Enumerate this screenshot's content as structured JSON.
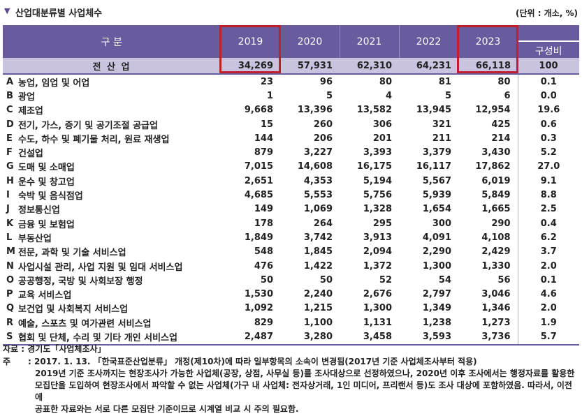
{
  "header": {
    "marker": "▼",
    "title": "산업대분류별 사업체수",
    "unit": "(단위 : 개소, %)"
  },
  "table": {
    "columns": {
      "category": "구 분",
      "years": [
        "2019",
        "2020",
        "2021",
        "2022",
        "2023"
      ],
      "share": "구성비"
    },
    "highlighted_years": [
      "2019",
      "2023"
    ],
    "total": {
      "label": "전 산 업",
      "values": [
        "34,269",
        "57,931",
        "62,310",
        "64,231",
        "66,118"
      ],
      "share": "100"
    },
    "rows": [
      {
        "code": "A",
        "name": "농업, 임업 및 어업",
        "values": [
          "23",
          "96",
          "80",
          "81",
          "80"
        ],
        "share": "0.1"
      },
      {
        "code": "B",
        "name": "광업",
        "values": [
          "1",
          "5",
          "4",
          "5",
          "6"
        ],
        "share": "0.0"
      },
      {
        "code": "C",
        "name": "제조업",
        "values": [
          "9,668",
          "13,396",
          "13,582",
          "13,945",
          "12,954"
        ],
        "share": "19.6"
      },
      {
        "code": "D",
        "name": "전기, 가스, 증기 및 공기조절 공급업",
        "values": [
          "15",
          "260",
          "306",
          "321",
          "425"
        ],
        "share": "0.6"
      },
      {
        "code": "E",
        "name": "수도, 하수 및 폐기물 처리, 원료 재생업",
        "values": [
          "144",
          "206",
          "201",
          "211",
          "214"
        ],
        "share": "0.3"
      },
      {
        "code": "F",
        "name": "건설업",
        "values": [
          "879",
          "3,227",
          "3,393",
          "3,379",
          "3,430"
        ],
        "share": "5.2"
      },
      {
        "code": "G",
        "name": "도매 및 소매업",
        "values": [
          "7,015",
          "14,608",
          "16,175",
          "16,117",
          "17,862"
        ],
        "share": "27.0"
      },
      {
        "code": "H",
        "name": "운수 및 창고업",
        "values": [
          "2,651",
          "4,353",
          "5,194",
          "5,567",
          "6,019"
        ],
        "share": "9.1"
      },
      {
        "code": "I",
        "name": "숙박 및 음식점업",
        "values": [
          "4,685",
          "5,553",
          "5,756",
          "5,939",
          "5,849"
        ],
        "share": "8.8"
      },
      {
        "code": "J",
        "name": "정보통신업",
        "values": [
          "149",
          "1,069",
          "1,328",
          "1,654",
          "1,665"
        ],
        "share": "2.5"
      },
      {
        "code": "K",
        "name": "금융 및 보험업",
        "values": [
          "178",
          "264",
          "295",
          "300",
          "290"
        ],
        "share": "0.4"
      },
      {
        "code": "L",
        "name": "부동산업",
        "values": [
          "1,849",
          "3,742",
          "3,913",
          "4,091",
          "4,108"
        ],
        "share": "6.2"
      },
      {
        "code": "M",
        "name": "전문, 과학 및 기술 서비스업",
        "values": [
          "548",
          "1,845",
          "2,094",
          "2,290",
          "2,429"
        ],
        "share": "3.7"
      },
      {
        "code": "N",
        "name": "사업시설 관리, 사업 지원 및 임대 서비스업",
        "values": [
          "476",
          "1,422",
          "1,372",
          "1,300",
          "1,330"
        ],
        "share": "2.0"
      },
      {
        "code": "O",
        "name": "공공행정, 국방 및 사회보장 행정",
        "values": [
          "50",
          "50",
          "52",
          "54",
          "56"
        ],
        "share": "0.1"
      },
      {
        "code": "P",
        "name": "교육 서비스업",
        "values": [
          "1,530",
          "2,240",
          "2,676",
          "2,797",
          "3,046"
        ],
        "share": "4.6"
      },
      {
        "code": "Q",
        "name": "보건업 및 사회복지 서비스업",
        "values": [
          "1,092",
          "1,215",
          "1,300",
          "1,349",
          "1,346"
        ],
        "share": "2.0"
      },
      {
        "code": "R",
        "name": "예술, 스포츠 및 여가관련 서비스업",
        "values": [
          "829",
          "1,100",
          "1,131",
          "1,238",
          "1,273"
        ],
        "share": "1.9"
      },
      {
        "code": "S",
        "name": "협회 및 단체, 수리 및 기타 개인 서비스업",
        "values": [
          "2,487",
          "3,280",
          "3,458",
          "3,593",
          "3,736"
        ],
        "share": "5.7"
      }
    ]
  },
  "notes": {
    "source": "자료 : 경기도「사업체조사」",
    "note_key": "주",
    "note_lines": [
      ": 2017. 1. 13. 「한국표준산업분류」 개정(제10차)에 따라 일부항목의 소속이 변경됨(2017년 기준 사업체조사부터 적용)",
      "2019년 기준 조사까지는 현장조사가 가능한 사업체(공장, 상점, 사무실 등)를 조사대상으로 선정하였으나, 2020년 이후 조사에서는 행정자료를 활용한",
      "모집단을 도입하여 현장조사에서 파악할 수 없는 사업체(가구 내 사업체: 전자상거래, 1인 미디어, 프리랜서 등)도 조사 대상에 포함하였음. 따라서, 이전에",
      "공표한 자료와는 서로 다른 모집단 기준이므로 시계열 비교 시 주의 필요함."
    ]
  }
}
